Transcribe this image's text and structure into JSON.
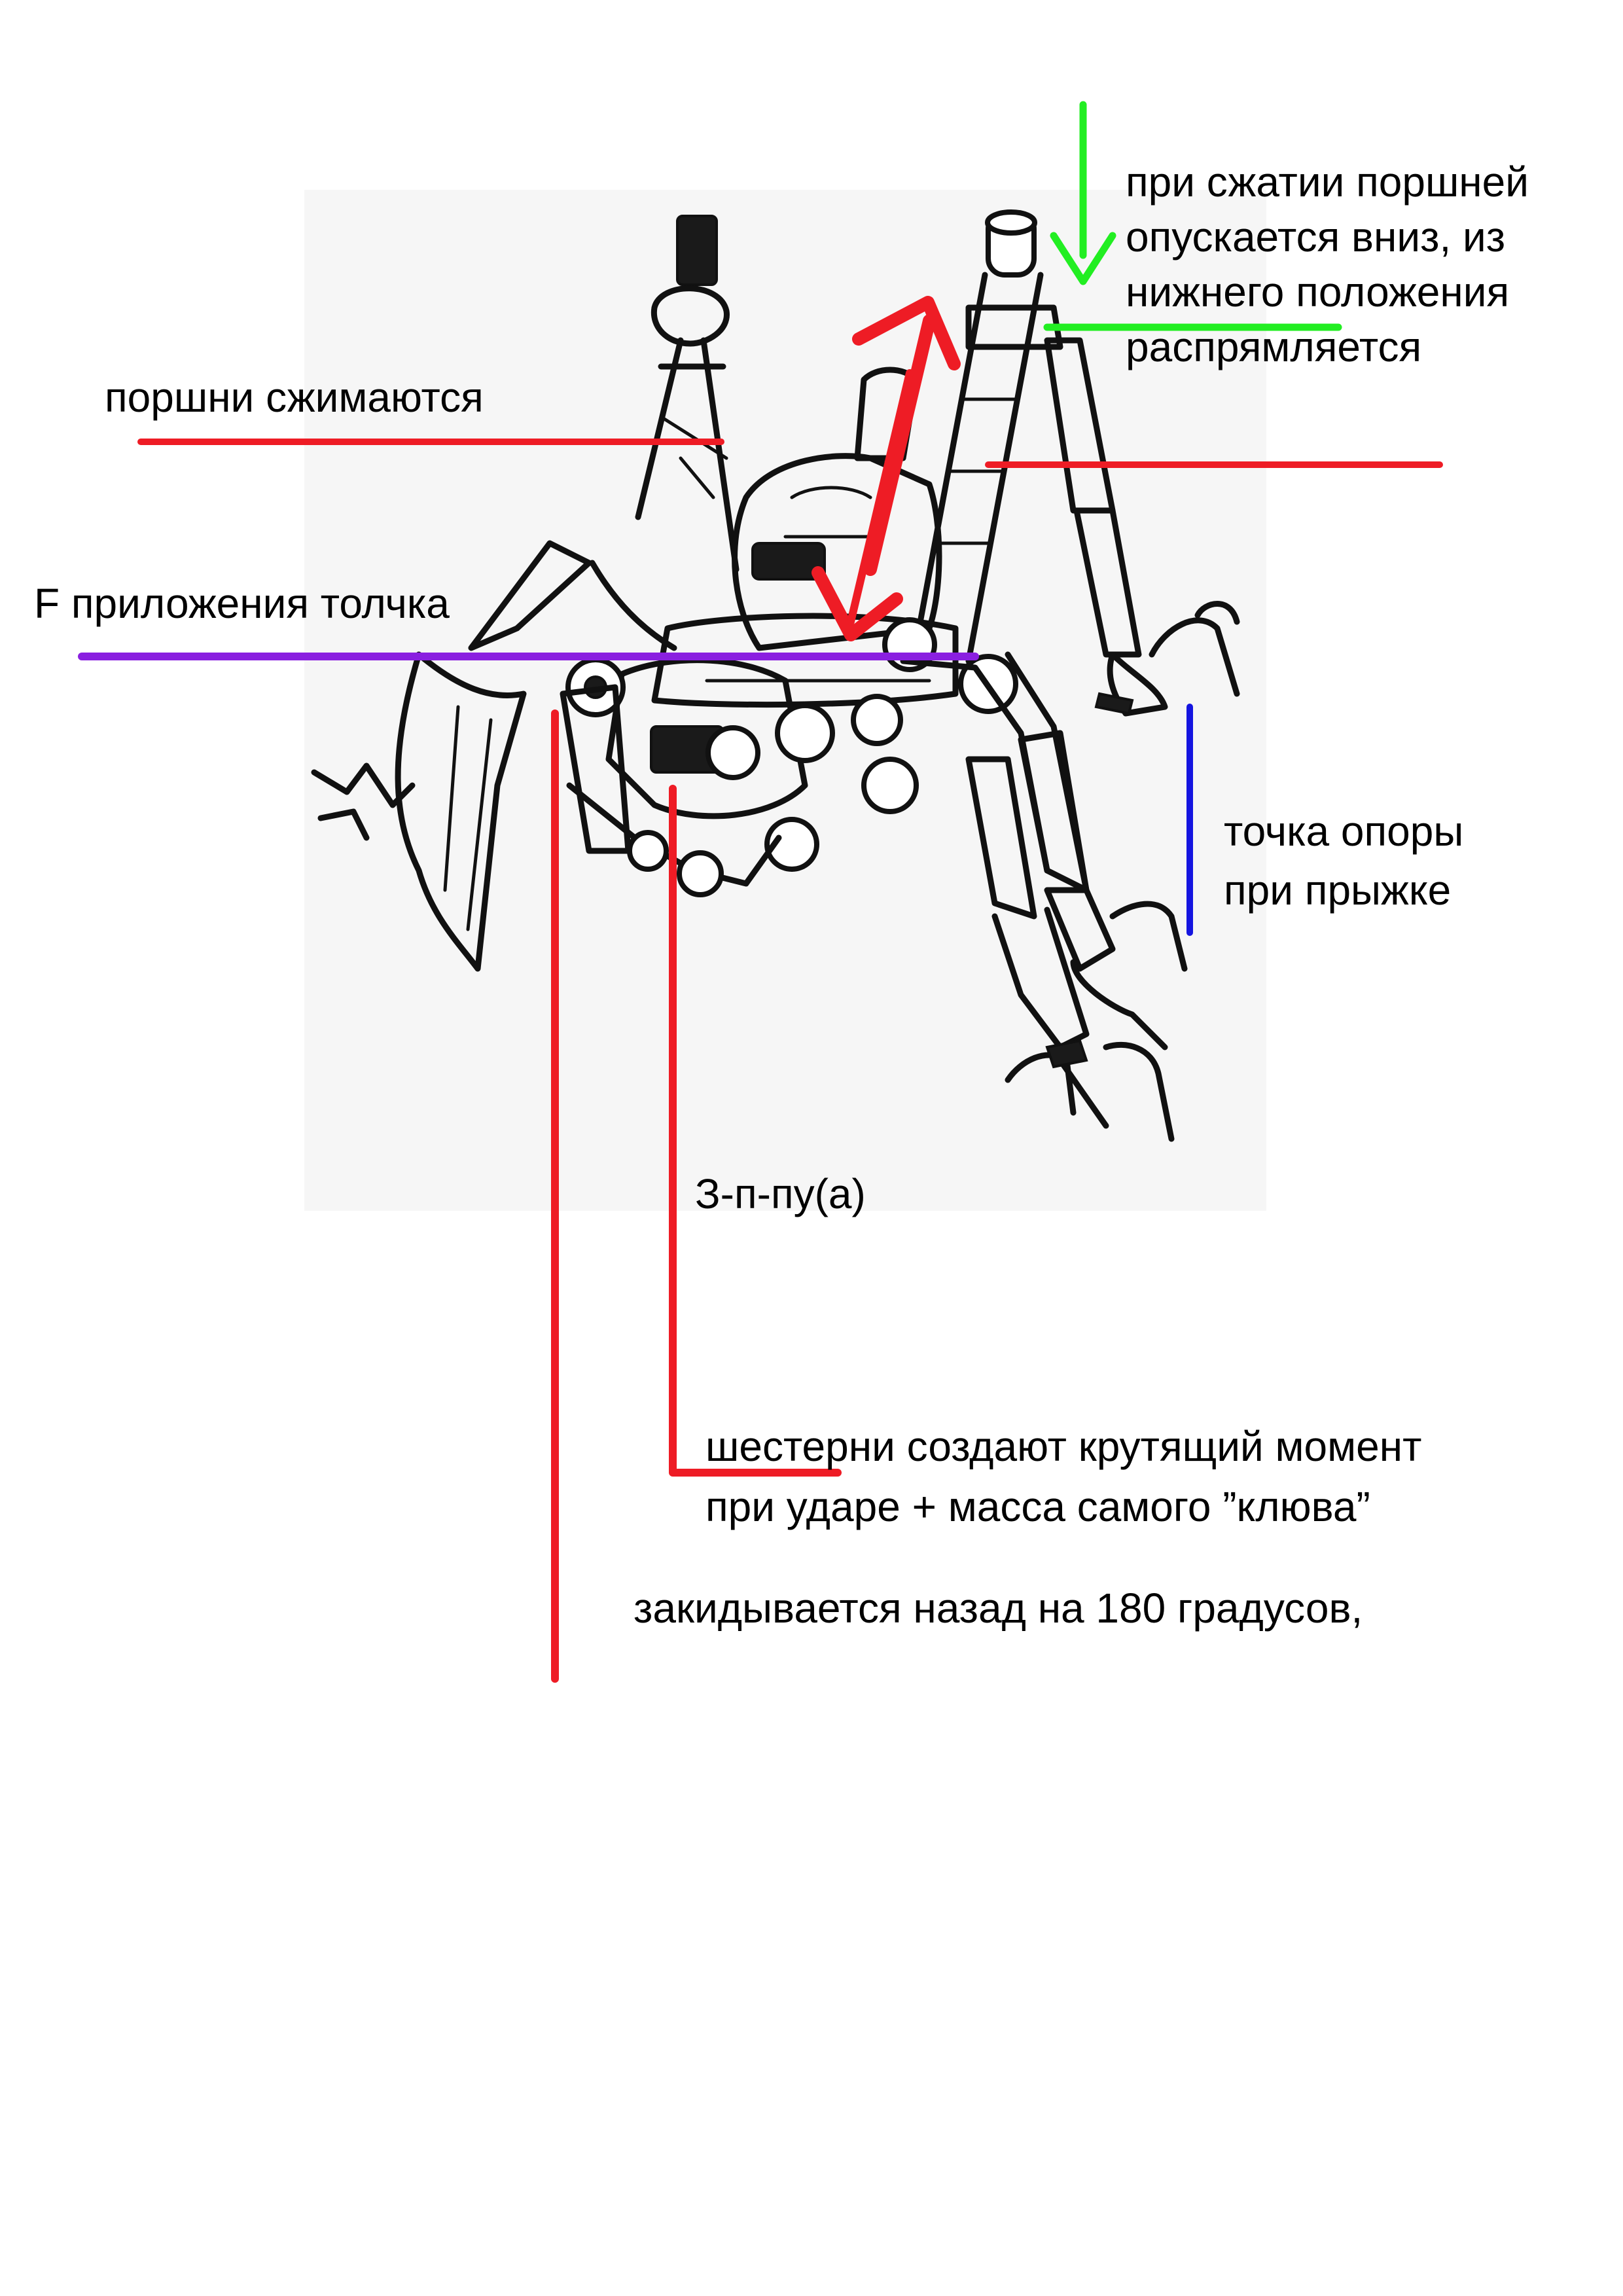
{
  "annotations": {
    "pistons_compress": "поршни сжимаются",
    "push_force": "F приложения толчка",
    "piston_compression_note": [
      "при сжатии поршней",
      "опускается вниз, из",
      "нижнего положения",
      "распрямляется"
    ],
    "jump_support": [
      "точка опоры",
      "при прыжке"
    ],
    "sound_effect": "З-п-пу(а)",
    "gears_torque": [
      "шестерни создают крутящий момент",
      "при ударе + масса самого ”клюва”"
    ],
    "thrown_back": "закидывается назад на 180 градусов,"
  },
  "colors": {
    "red": "#ee1c25",
    "green": "#22ee22",
    "blue": "#1515e0",
    "purple": "#8a1fe0",
    "ink": "#111111"
  }
}
